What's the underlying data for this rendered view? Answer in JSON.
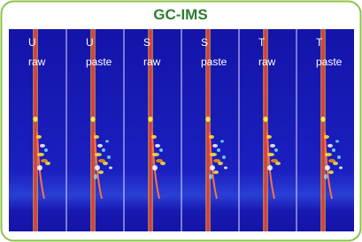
{
  "header": {
    "title": "GC-IMS"
  },
  "panels": [
    {
      "sample": "U",
      "state": "raw"
    },
    {
      "sample": "U",
      "state": "paste"
    },
    {
      "sample": "S",
      "state": "raw"
    },
    {
      "sample": "S",
      "state": "paste"
    },
    {
      "sample": "T",
      "state": "raw"
    },
    {
      "sample": "T",
      "state": "paste"
    }
  ]
}
